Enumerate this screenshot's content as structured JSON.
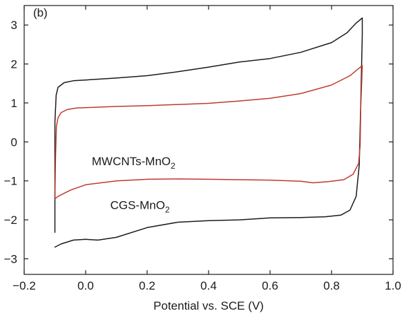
{
  "chart_data": {
    "type": "line",
    "panel_label": "(b)",
    "title": "",
    "xlabel": "Potential vs. SCE (V)",
    "ylabel": "",
    "xlim": [
      -0.2,
      1.0
    ],
    "ylim": [
      -3.4,
      3.5
    ],
    "x_ticks": [
      -0.2,
      0.0,
      0.2,
      0.4,
      0.6,
      0.8,
      1.0
    ],
    "x_tick_labels": [
      "−0.2",
      "0.0",
      "0.2",
      "0.4",
      "0.6",
      "0.8",
      "1.0"
    ],
    "y_ticks": [
      -3,
      -2,
      -1,
      0,
      1,
      2,
      3
    ],
    "y_tick_labels": [
      "−3",
      "−2",
      "−1",
      "0",
      "1",
      "2",
      "3"
    ],
    "grid": false,
    "series": [
      {
        "name": "CGS-MnO2",
        "label_main": "CGS-MnO",
        "label_sub": "2",
        "color": "#1a1a1a",
        "points": [
          [
            -0.1,
            -2.32
          ],
          [
            -0.1,
            -1.0
          ],
          [
            -0.1,
            0.5
          ],
          [
            -0.096,
            1.2
          ],
          [
            -0.09,
            1.4
          ],
          [
            -0.07,
            1.52
          ],
          [
            -0.04,
            1.57
          ],
          [
            0.0,
            1.59
          ],
          [
            0.1,
            1.64
          ],
          [
            0.2,
            1.7
          ],
          [
            0.3,
            1.8
          ],
          [
            0.4,
            1.92
          ],
          [
            0.5,
            2.05
          ],
          [
            0.6,
            2.14
          ],
          [
            0.7,
            2.3
          ],
          [
            0.8,
            2.55
          ],
          [
            0.85,
            2.8
          ],
          [
            0.88,
            3.05
          ],
          [
            0.9,
            3.18
          ],
          [
            0.9,
            2.75
          ],
          [
            0.895,
            1.0
          ],
          [
            0.89,
            -0.6
          ],
          [
            0.88,
            -1.4
          ],
          [
            0.86,
            -1.75
          ],
          [
            0.83,
            -1.88
          ],
          [
            0.78,
            -1.92
          ],
          [
            0.7,
            -1.94
          ],
          [
            0.6,
            -1.95
          ],
          [
            0.5,
            -2.0
          ],
          [
            0.4,
            -2.02
          ],
          [
            0.3,
            -2.06
          ],
          [
            0.2,
            -2.2
          ],
          [
            0.1,
            -2.45
          ],
          [
            0.04,
            -2.52
          ],
          [
            0.0,
            -2.5
          ],
          [
            -0.04,
            -2.52
          ],
          [
            -0.08,
            -2.62
          ],
          [
            -0.1,
            -2.7
          ]
        ]
      },
      {
        "name": "MWCNTs-MnO2",
        "label_main": "MWCNTs-MnO",
        "label_sub": "2",
        "color": "#c0392b",
        "points": [
          [
            -0.1,
            -1.46
          ],
          [
            -0.098,
            -0.4
          ],
          [
            -0.095,
            0.4
          ],
          [
            -0.09,
            0.62
          ],
          [
            -0.08,
            0.75
          ],
          [
            -0.06,
            0.83
          ],
          [
            -0.03,
            0.87
          ],
          [
            0.0,
            0.88
          ],
          [
            0.1,
            0.91
          ],
          [
            0.2,
            0.93
          ],
          [
            0.3,
            0.96
          ],
          [
            0.4,
            0.99
          ],
          [
            0.5,
            1.05
          ],
          [
            0.6,
            1.12
          ],
          [
            0.7,
            1.24
          ],
          [
            0.8,
            1.46
          ],
          [
            0.86,
            1.7
          ],
          [
            0.9,
            1.96
          ],
          [
            0.898,
            1.5
          ],
          [
            0.895,
            0.9
          ],
          [
            0.893,
            -0.1
          ],
          [
            0.888,
            -0.55
          ],
          [
            0.87,
            -0.83
          ],
          [
            0.84,
            -0.97
          ],
          [
            0.79,
            -1.02
          ],
          [
            0.74,
            -1.05
          ],
          [
            0.7,
            -1.01
          ],
          [
            0.6,
            -0.98
          ],
          [
            0.5,
            -0.97
          ],
          [
            0.4,
            -0.96
          ],
          [
            0.3,
            -0.95
          ],
          [
            0.2,
            -0.96
          ],
          [
            0.1,
            -1.0
          ],
          [
            0.0,
            -1.1
          ],
          [
            -0.05,
            -1.24
          ],
          [
            -0.09,
            -1.4
          ],
          [
            -0.1,
            -1.46
          ]
        ]
      }
    ],
    "annotations": [
      {
        "series": "MWCNTs-MnO2",
        "x": 0.02,
        "y": -0.6
      },
      {
        "series": "CGS-MnO2",
        "x": 0.08,
        "y": -1.72
      }
    ]
  }
}
